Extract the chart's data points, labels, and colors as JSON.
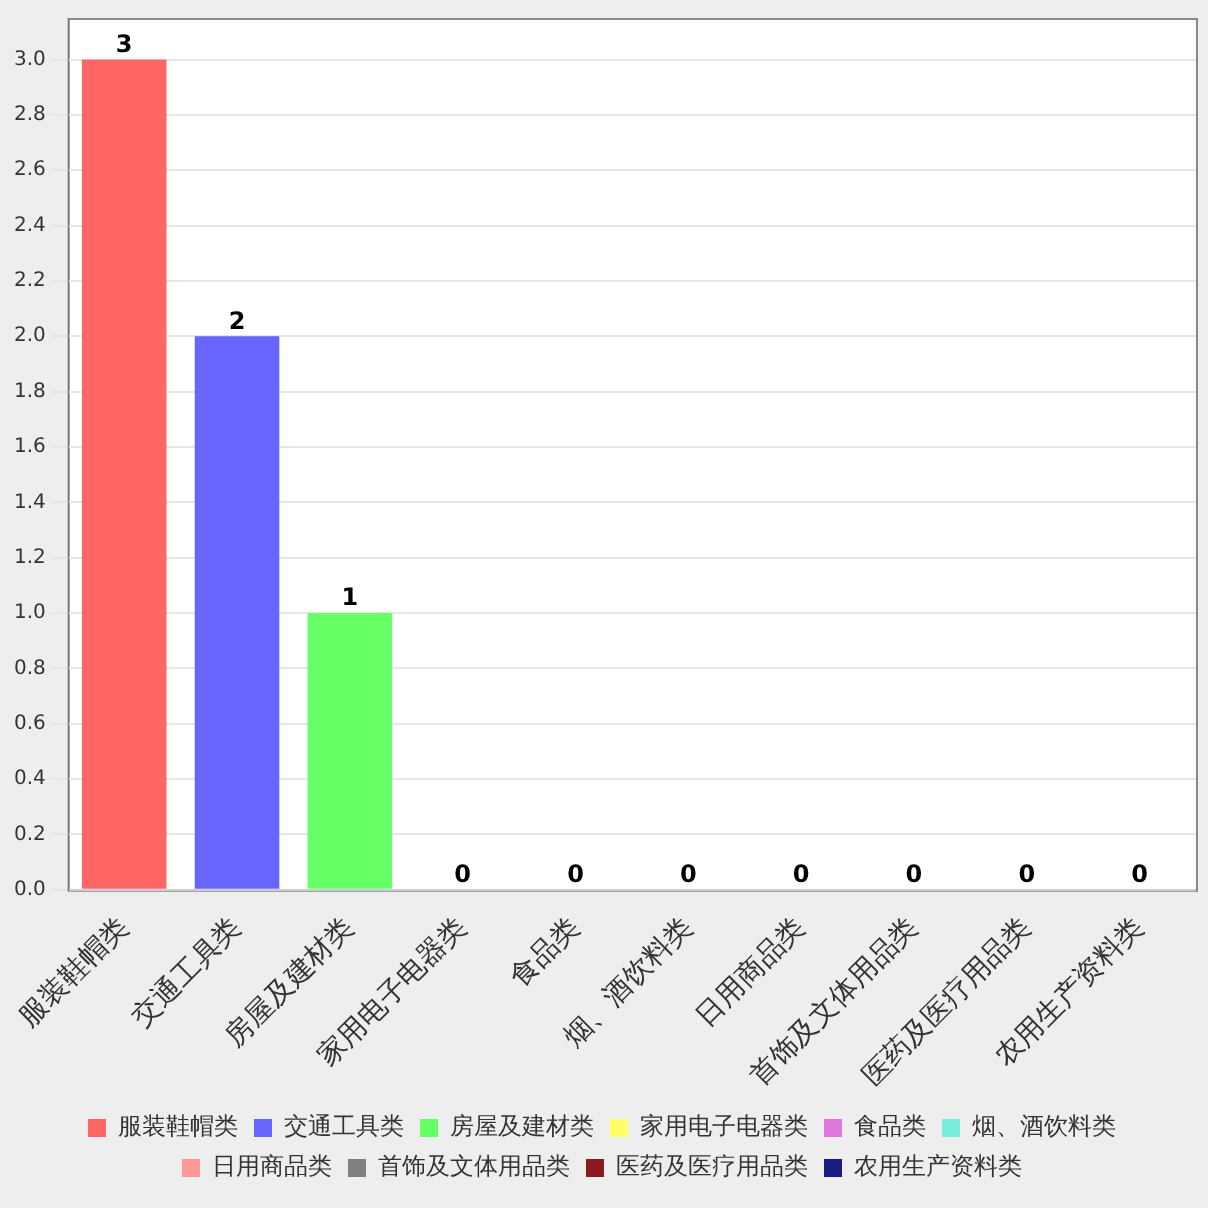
{
  "chart_data": {
    "type": "bar",
    "categories": [
      "服装鞋帽类",
      "交通工具类",
      "房屋及建材类",
      "家用电子电器类",
      "食品类",
      "烟、酒饮料类",
      "日用商品类",
      "首饰及文体用品类",
      "医药及医疗用品类",
      "农用生产资料类"
    ],
    "series": [
      {
        "name": "服装鞋帽类",
        "color": "#ff6666",
        "values": [
          3,
          null,
          null,
          null,
          null,
          null,
          null,
          null,
          null,
          null
        ]
      },
      {
        "name": "交通工具类",
        "color": "#6666ff",
        "values": [
          null,
          2,
          null,
          null,
          null,
          null,
          null,
          null,
          null,
          null
        ]
      },
      {
        "name": "房屋及建材类",
        "color": "#66ff66",
        "values": [
          null,
          null,
          1,
          null,
          null,
          null,
          null,
          null,
          null,
          null
        ]
      },
      {
        "name": "家用电子电器类",
        "color": "#ffff66",
        "values": [
          null,
          null,
          null,
          0,
          null,
          null,
          null,
          null,
          null,
          null
        ]
      },
      {
        "name": "食品类",
        "color": "#dd77dd",
        "values": [
          null,
          null,
          null,
          null,
          0,
          null,
          null,
          null,
          null,
          null
        ]
      },
      {
        "name": "烟、酒饮料类",
        "color": "#77eedd",
        "values": [
          null,
          null,
          null,
          null,
          null,
          0,
          null,
          null,
          null,
          null
        ]
      },
      {
        "name": "日用商品类",
        "color": "#ff9999",
        "values": [
          null,
          null,
          null,
          null,
          null,
          null,
          0,
          null,
          null,
          null
        ]
      },
      {
        "name": "首饰及文体用品类",
        "color": "#808080",
        "values": [
          null,
          null,
          null,
          null,
          null,
          null,
          null,
          0,
          null,
          null
        ]
      },
      {
        "name": "医药及医疗用品类",
        "color": "#8b1a1a",
        "values": [
          null,
          null,
          null,
          null,
          null,
          null,
          null,
          null,
          0,
          null
        ]
      },
      {
        "name": "农用生产资料类",
        "color": "#1a1a80",
        "values": [
          null,
          null,
          null,
          null,
          null,
          null,
          null,
          null,
          null,
          0
        ]
      }
    ],
    "ylim": [
      0,
      3.15
    ],
    "yticks": [
      {
        "value": 0,
        "label": "0.0"
      },
      {
        "value": 0.2,
        "label": "0.2"
      },
      {
        "value": 0.4,
        "label": "0.4"
      },
      {
        "value": 0.6,
        "label": "0.6"
      },
      {
        "value": 0.8,
        "label": "0.8"
      },
      {
        "value": 1,
        "label": "1.0"
      },
      {
        "value": 1.2,
        "label": "1.2"
      },
      {
        "value": 1.4,
        "label": "1.4"
      },
      {
        "value": 1.6,
        "label": "1.6"
      },
      {
        "value": 1.8,
        "label": "1.8"
      },
      {
        "value": 2,
        "label": "2.0"
      },
      {
        "value": 2.2,
        "label": "2.2"
      },
      {
        "value": 2.4,
        "label": "2.4"
      },
      {
        "value": 2.6,
        "label": "2.6"
      },
      {
        "value": 2.8,
        "label": "2.8"
      },
      {
        "value": 3,
        "label": "3.0"
      }
    ],
    "grid": "y",
    "legend": "bottom",
    "data_labels": true
  }
}
